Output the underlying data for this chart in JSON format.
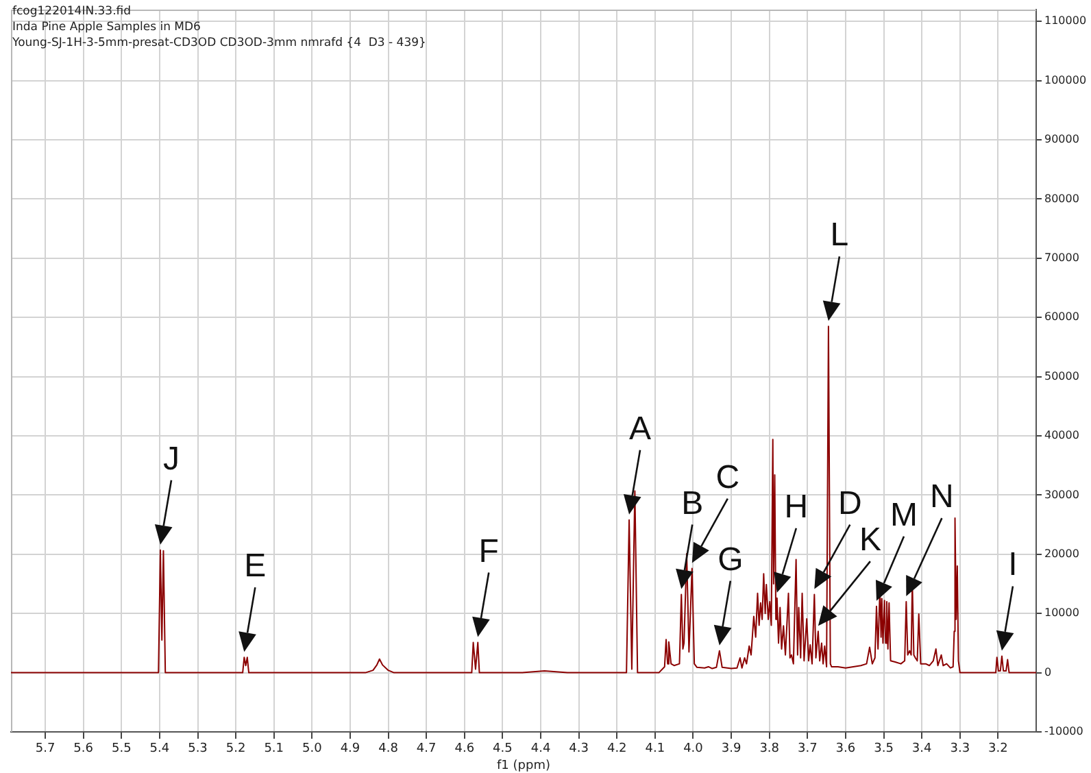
{
  "chart_data": {
    "type": "line",
    "xlabel": "f1 (ppm)",
    "annotations": [
      "fcog122014IN.33.fid",
      "Inda Pine Apple Samples in MD6",
      "Young-SJ-1H-3-5mm-presat-CD3OD CD3OD-3mm nmrafd {4  D3 - 439}",
      {
        "text": "J",
        "x": 5.398,
        "y": 20700
      },
      {
        "text": "E",
        "x": 5.178,
        "y": 2600
      },
      {
        "text": "F",
        "x": 4.565,
        "y": 5100
      },
      {
        "text": "A",
        "x": 4.168,
        "y": 25800
      },
      {
        "text": "B",
        "x": 4.031,
        "y": 13200
      },
      {
        "text": "C",
        "x": 4.003,
        "y": 17600
      },
      {
        "text": "G",
        "x": 3.931,
        "y": 3700
      },
      {
        "text": "H",
        "x": 3.78,
        "y": 12600
      },
      {
        "text": "D",
        "x": 3.682,
        "y": 13200
      },
      {
        "text": "K",
        "x": 3.672,
        "y": 7000
      },
      {
        "text": "L",
        "x": 3.645,
        "y": 58500
      },
      {
        "text": "M",
        "x": 3.519,
        "y": 11200
      },
      {
        "text": "N",
        "x": 3.441,
        "y": 12000
      },
      {
        "text": "I",
        "x": 3.19,
        "y": 2800
      }
    ],
    "series": [
      {
        "color": "#8b0000",
        "x": [
          5.79,
          5.403,
          5.398,
          5.394,
          5.39,
          5.385,
          5.182,
          5.178,
          5.174,
          5.17,
          5.166,
          4.86,
          4.84,
          4.83,
          4.823,
          4.815,
          4.8,
          4.785,
          4.581,
          4.577,
          4.571,
          4.565,
          4.561,
          4.45,
          4.39,
          4.33,
          4.175,
          4.168,
          4.161,
          4.153,
          4.146,
          4.09,
          4.075,
          4.071,
          4.067,
          4.064,
          4.058,
          4.05,
          4.036,
          4.031,
          4.027,
          4.024,
          4.017,
          4.011,
          4.003,
          3.997,
          3.99,
          3.97,
          3.96,
          3.95,
          3.939,
          3.931,
          3.924,
          3.9,
          3.885,
          3.877,
          3.872,
          3.865,
          3.86,
          3.853,
          3.848,
          3.841,
          3.836,
          3.831,
          3.827,
          3.823,
          3.819,
          3.815,
          3.811,
          3.808,
          3.803,
          3.799,
          3.795,
          3.791,
          3.789,
          3.786,
          3.783,
          3.78,
          3.776,
          3.772,
          3.768,
          3.763,
          3.758,
          3.75,
          3.746,
          3.742,
          3.737,
          3.73,
          3.726,
          3.723,
          3.718,
          3.714,
          3.709,
          3.702,
          3.697,
          3.693,
          3.688,
          3.682,
          3.678,
          3.672,
          3.668,
          3.663,
          3.659,
          3.655,
          3.65,
          3.645,
          3.64,
          3.637,
          3.62,
          3.6,
          3.58,
          3.56,
          3.545,
          3.537,
          3.53,
          3.523,
          3.519,
          3.515,
          3.51,
          3.507,
          3.505,
          3.502,
          3.498,
          3.495,
          3.492,
          3.489,
          3.486,
          3.482,
          3.47,
          3.455,
          3.445,
          3.441,
          3.437,
          3.432,
          3.428,
          3.425,
          3.421,
          3.417,
          3.412,
          3.408,
          3.403,
          3.39,
          3.38,
          3.37,
          3.363,
          3.358,
          3.349,
          3.344,
          3.335,
          3.325,
          3.318,
          3.315,
          3.313,
          3.31,
          3.307,
          3.304,
          3.3,
          3.206,
          3.203,
          3.199,
          3.194,
          3.19,
          3.186,
          3.179,
          3.175,
          3.171,
          3.1
        ],
        "values": [
          0,
          0,
          20700,
          5500,
          20600,
          0,
          0,
          2600,
          1200,
          2600,
          0,
          0,
          400,
          1300,
          2300,
          1300,
          400,
          0,
          0,
          5100,
          600,
          5100,
          0,
          0,
          300,
          0,
          0,
          25800,
          600,
          30700,
          0,
          0,
          1000,
          5600,
          1500,
          5200,
          1500,
          1200,
          1500,
          13200,
          4000,
          5000,
          20100,
          3500,
          17600,
          1500,
          900,
          800,
          1000,
          700,
          900,
          3700,
          900,
          700,
          800,
          2500,
          800,
          2500,
          1500,
          4500,
          3000,
          9500,
          6000,
          13400,
          8000,
          11800,
          9000,
          16700,
          10000,
          14900,
          9000,
          12000,
          8000,
          39400,
          15000,
          33400,
          9000,
          12600,
          5000,
          11000,
          4000,
          7900,
          3000,
          13400,
          2500,
          3000,
          1500,
          19100,
          3000,
          11000,
          2500,
          13400,
          2000,
          9100,
          2000,
          4700,
          1500,
          13200,
          2500,
          7000,
          2000,
          5000,
          1500,
          4500,
          1000,
          58500,
          1500,
          1000,
          1000,
          800,
          1000,
          1200,
          1500,
          4300,
          1500,
          2500,
          11200,
          4000,
          14100,
          6000,
          12500,
          5000,
          12200,
          5000,
          12000,
          4000,
          11800,
          2000,
          1800,
          1500,
          2000,
          12000,
          3000,
          3700,
          3000,
          15300,
          3000,
          2500,
          2000,
          9900,
          1500,
          1500,
          1200,
          2000,
          4000,
          1200,
          3000,
          1200,
          1500,
          800,
          1000,
          7000,
          26100,
          9000,
          18000,
          2000,
          0,
          0,
          2600,
          300,
          300,
          2800,
          300,
          300,
          2200,
          0,
          0
        ]
      }
    ],
    "xlim": [
      5.79,
      3.1
    ],
    "xticks": [
      5.7,
      5.6,
      5.5,
      5.4,
      5.3,
      5.2,
      5.1,
      {
        "value": 5,
        "label": "5.0"
      },
      4.9,
      4.8,
      4.7,
      4.6,
      4.5,
      4.4,
      4.3,
      4.2,
      4.1,
      {
        "value": 4,
        "label": "4.0"
      },
      3.9,
      3.8,
      3.7,
      3.6,
      3.5,
      3.4,
      3.3,
      3.2
    ],
    "ylim": [
      -10000,
      112000
    ],
    "yticks": [
      -10000,
      0,
      10000,
      20000,
      30000,
      40000,
      50000,
      60000,
      70000,
      80000,
      90000,
      100000,
      110000
    ],
    "grid": true,
    "legend": false,
    "marker": "none",
    "line_style": "solid"
  }
}
